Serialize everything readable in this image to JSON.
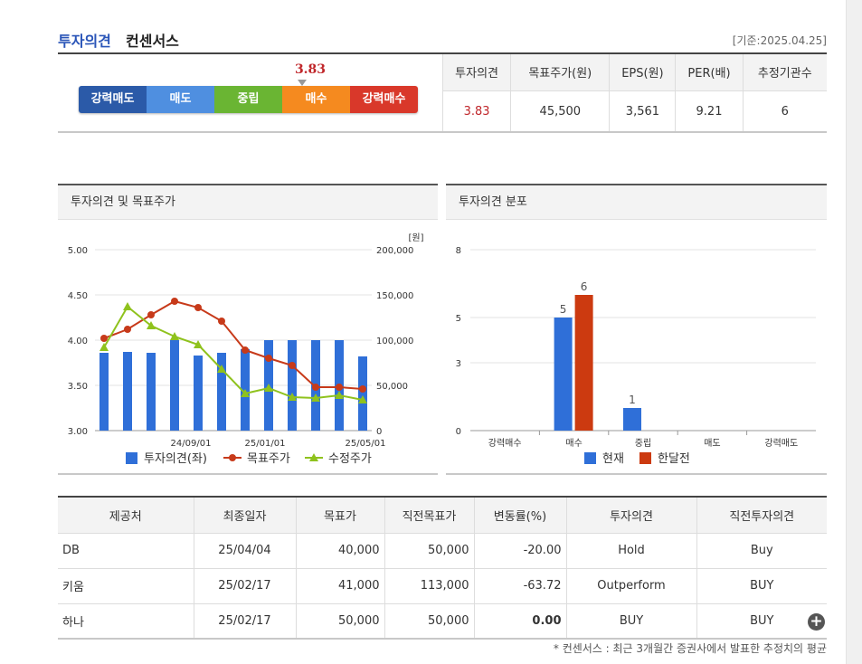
{
  "header": {
    "title_blue": "투자의견",
    "title_dark": "컨센서스",
    "date": "[기준:2025.04.25]"
  },
  "gauge": {
    "value": "3.83",
    "segments": [
      {
        "label": "강력매도",
        "color": "#2b5aa8"
      },
      {
        "label": "매도",
        "color": "#4f8fe0"
      },
      {
        "label": "중립",
        "color": "#6ab533"
      },
      {
        "label": "매수",
        "color": "#f58a1f"
      },
      {
        "label": "강력매수",
        "color": "#d9382a"
      }
    ]
  },
  "summary": {
    "headers": [
      "투자의견",
      "목표주가(원)",
      "EPS(원)",
      "PER(배)",
      "추정기관수"
    ],
    "values": [
      "3.83",
      "45,500",
      "3,561",
      "9.21",
      "6"
    ]
  },
  "panels": {
    "left_title": "투자의견 및 목표주가",
    "right_title": "투자의견 분포"
  },
  "chart_data": [
    {
      "type": "bar",
      "title": "투자의견 및 목표주가",
      "y_left_lim": [
        3.0,
        5.0
      ],
      "y_left_ticks": [
        "5.00",
        "4.50",
        "4.00",
        "3.50",
        "3.00"
      ],
      "y_right_lim": [
        0,
        200000
      ],
      "y_right_ticks": [
        "200,000",
        "150,000",
        "100,000",
        "50,000",
        "0"
      ],
      "y_right_unit": "[원]",
      "x_ticks": [
        "24/09/01",
        "25/01/01",
        "25/05/01"
      ],
      "legend": [
        "투자의견(좌)",
        "목표주가",
        "수정주가"
      ],
      "series": [
        {
          "name": "투자의견(좌)",
          "type": "bar",
          "color": "#2f6fd8",
          "values": [
            3.86,
            3.87,
            3.86,
            4.0,
            3.83,
            3.86,
            3.9,
            4.0,
            4.0,
            4.0,
            4.0,
            3.82
          ]
        },
        {
          "name": "목표주가",
          "type": "line",
          "color": "#c73a1a",
          "values": [
            102000,
            112000,
            128000,
            143000,
            136000,
            121000,
            89000,
            80000,
            72000,
            48000,
            48000,
            46000
          ]
        },
        {
          "name": "수정주가",
          "type": "line",
          "color": "#8fc21d",
          "values": [
            92000,
            137000,
            116000,
            104000,
            95000,
            68000,
            41000,
            47000,
            37000,
            36000,
            39000,
            34000
          ]
        }
      ]
    },
    {
      "type": "bar",
      "title": "투자의견 분포",
      "categories": [
        "강력매수",
        "매수",
        "중립",
        "매도",
        "강력매도"
      ],
      "ylim": [
        0,
        8
      ],
      "y_ticks": [
        "8",
        "5",
        "3",
        "0"
      ],
      "legend": [
        "현재",
        "한달전"
      ],
      "series": [
        {
          "name": "현재",
          "color": "#2f6fd8",
          "values": [
            0,
            5,
            1,
            0,
            0
          ]
        },
        {
          "name": "한달전",
          "color": "#cc3a10",
          "values": [
            0,
            6,
            0,
            0,
            0
          ]
        }
      ]
    }
  ],
  "table": {
    "headers": [
      "제공처",
      "최종일자",
      "목표가",
      "직전목표가",
      "변동률(%)",
      "투자의견",
      "직전투자의견"
    ],
    "rows": [
      [
        "DB",
        "25/04/04",
        "40,000",
        "50,000",
        "-20.00",
        "Hold",
        "Buy"
      ],
      [
        "키움",
        "25/02/17",
        "41,000",
        "113,000",
        "-63.72",
        "Outperform",
        "BUY"
      ],
      [
        "하나",
        "25/02/17",
        "50,000",
        "50,000",
        "0.00",
        "BUY",
        "BUY"
      ]
    ]
  },
  "note": "* 컨센서스 : 최근 3개월간 증권사에서 발표한 추정치의 평균"
}
